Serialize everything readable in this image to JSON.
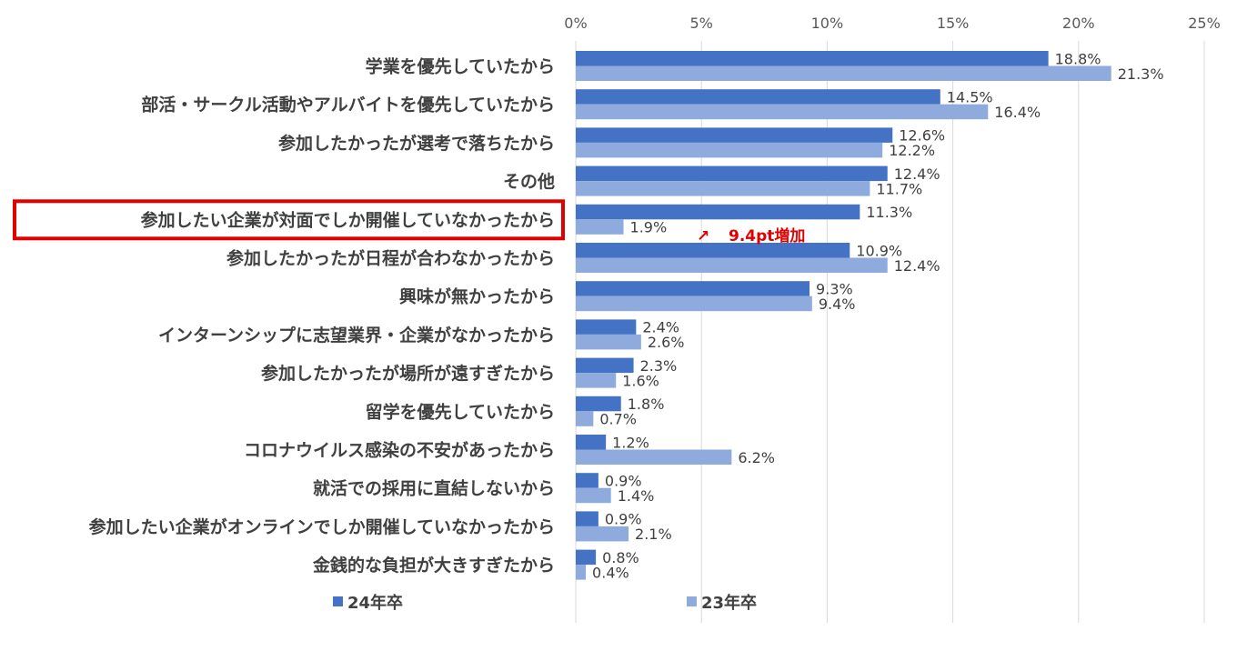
{
  "chart_data": {
    "type": "bar",
    "orientation": "horizontal",
    "categories": [
      "学業を優先していたから",
      "部活・サークル活動やアルバイトを優先していたから",
      "参加したかったが選考で落ちたから",
      "その他",
      "参加したい企業が対面でしか開催していなかったから",
      "参加したかったが日程が合わなかったから",
      "興味が無かったから",
      "インターンシップに志望業界・企業がなかったから",
      "参加したかったが場所が遠すぎたから",
      "留学を優先していたから",
      "コロナウイルス感染の不安があったから",
      "就活での採用に直結しないから",
      "参加したい企業がオンラインでしか開催していなかったから",
      "金銭的な負担が大きすぎたから"
    ],
    "series": [
      {
        "name": "24年卒",
        "color": "#4472c4",
        "values": [
          18.8,
          14.5,
          12.6,
          12.4,
          11.3,
          10.9,
          9.3,
          2.4,
          2.3,
          1.8,
          1.2,
          0.9,
          0.9,
          0.8
        ],
        "labels": [
          "18.8%",
          "14.5%",
          "12.6%",
          "12.4%",
          "11.3%",
          "10.9%",
          "9.3%",
          "2.4%",
          "2.3%",
          "1.8%",
          "1.2%",
          "0.9%",
          "0.9%",
          "0.8%"
        ]
      },
      {
        "name": "23年卒",
        "color": "#8faadc",
        "values": [
          21.3,
          16.4,
          12.2,
          11.7,
          1.9,
          12.4,
          9.4,
          2.6,
          1.6,
          0.7,
          6.2,
          1.4,
          2.1,
          0.4
        ],
        "labels": [
          "21.3%",
          "16.4%",
          "12.2%",
          "11.7%",
          "1.9%",
          "12.4%",
          "9.4%",
          "2.6%",
          "1.6%",
          "0.7%",
          "6.2%",
          "1.4%",
          "2.1%",
          "0.4%"
        ]
      }
    ],
    "xlim": [
      0,
      25
    ],
    "xticks": [
      "0%",
      "5%",
      "10%",
      "15%",
      "20%",
      "25%"
    ],
    "grid": true,
    "legend_position": "bottom",
    "highlight_category": "参加したい企業が対面でしか開催していなかったから",
    "highlight_color": "#e00000",
    "annotation": {
      "arrow": "↗",
      "text": "9.4pt増加",
      "color": "#e00000"
    }
  }
}
